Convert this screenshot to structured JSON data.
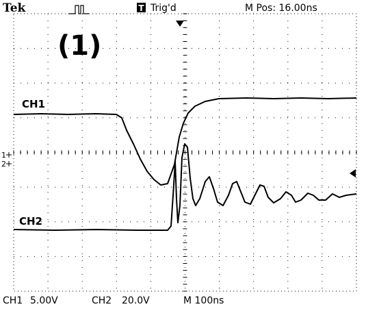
{
  "header": {
    "brand": "Tek",
    "trigger_icon": "T",
    "trigger_status": "Trig'd",
    "position": "M Pos: 16.00ns"
  },
  "annotation": "(1)",
  "traces": [
    {
      "label": "CH1"
    },
    {
      "label": "CH2"
    }
  ],
  "markers": [
    "1",
    "2"
  ],
  "footer": {
    "ch1_label": "CH1",
    "ch1_scale": "5.00V",
    "ch2_label": "CH2",
    "ch2_scale": "20.0V",
    "timebase": "M 100ns"
  }
}
